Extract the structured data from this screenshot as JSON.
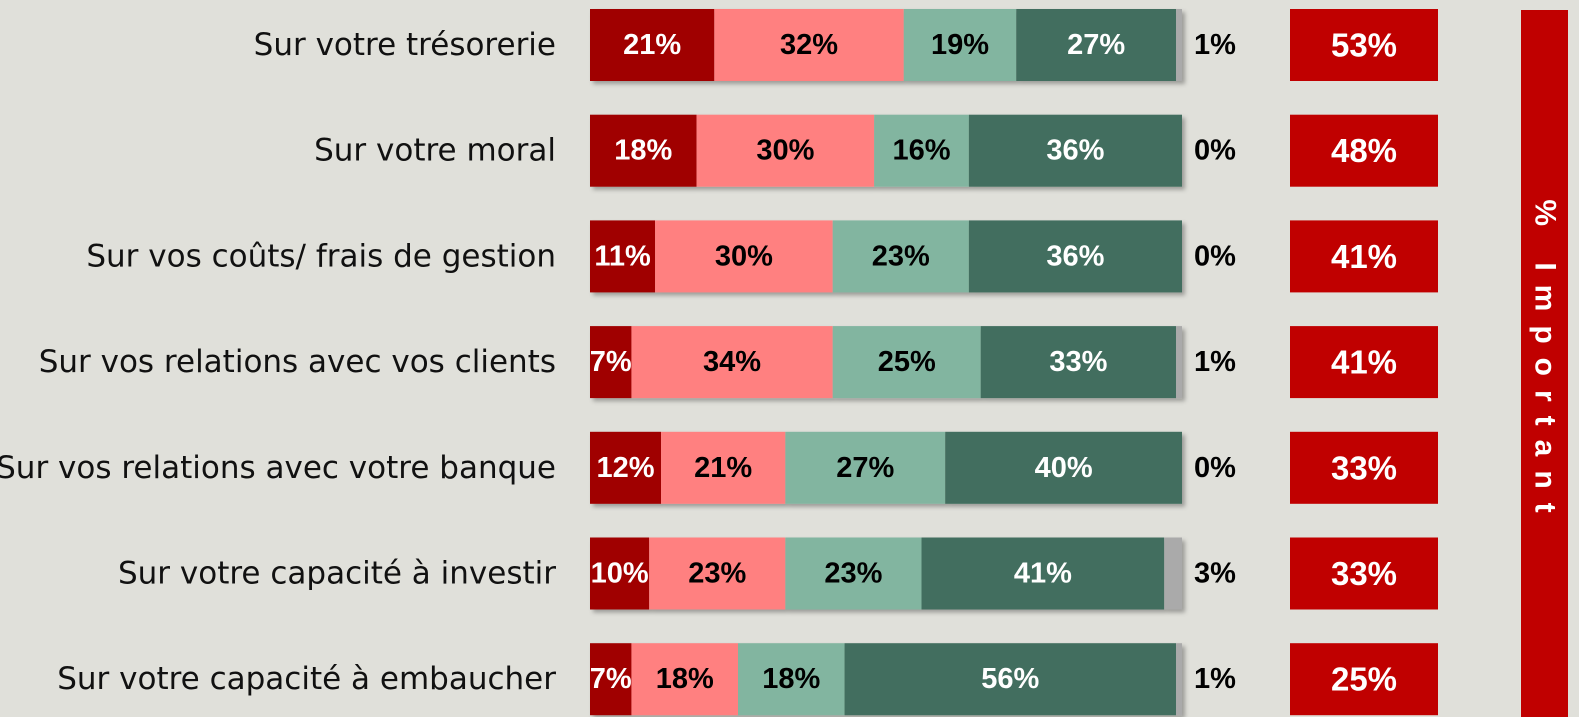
{
  "chart_data": {
    "type": "stacked_barh",
    "categories": [
      "Sur votre trésorerie",
      "Sur votre moral",
      "Sur vos coûts/ frais de gestion",
      "Sur vos relations avec vos clients",
      "Sur vos relations avec votre banque",
      "Sur votre capacité à investir",
      "Sur votre capacité à embaucher"
    ],
    "series": [
      {
        "color": "#a00000",
        "values": [
          21,
          18,
          11,
          7,
          12,
          10,
          7
        ],
        "value_labels": [
          "21%",
          "18%",
          "11%",
          "7%",
          "12%",
          "10%",
          "7%"
        ]
      },
      {
        "color": "#ff8080",
        "values": [
          32,
          30,
          30,
          34,
          21,
          23,
          18
        ],
        "value_labels": [
          "32%",
          "30%",
          "30%",
          "34%",
          "21%",
          "23%",
          "18%"
        ]
      },
      {
        "color": "#82b5a0",
        "values": [
          19,
          16,
          23,
          25,
          27,
          23,
          18
        ],
        "value_labels": [
          "19%",
          "16%",
          "23%",
          "25%",
          "27%",
          "23%",
          "18%"
        ]
      },
      {
        "color": "#426e5e",
        "values": [
          27,
          36,
          36,
          33,
          40,
          41,
          56
        ],
        "value_labels": [
          "27%",
          "36%",
          "36%",
          "33%",
          "40%",
          "41%",
          "56%"
        ]
      },
      {
        "color": "#aaaaaa",
        "values": [
          1,
          0,
          0,
          1,
          0,
          3,
          1
        ],
        "value_labels": [
          "1%",
          "0%",
          "0%",
          "1%",
          "0%",
          "3%",
          "1%"
        ]
      }
    ],
    "xlim": [
      0,
      100
    ],
    "important": {
      "label": "% Important",
      "color": "#c00000",
      "values": [
        53,
        48,
        41,
        41,
        33,
        33,
        25
      ],
      "value_labels": [
        "53%",
        "48%",
        "41%",
        "41%",
        "33%",
        "33%",
        "25%"
      ]
    }
  }
}
